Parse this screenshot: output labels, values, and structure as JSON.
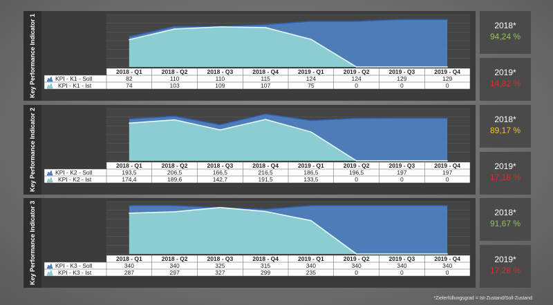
{
  "quarters": [
    "2018 - Q1",
    "2018 - Q2",
    "2018 - Q3",
    "2018 - Q4",
    "2019 - Q1",
    "2019 - Q2",
    "2019 - Q3",
    "2019 - Q4"
  ],
  "colors": {
    "soll": "#4f83c4",
    "ist": "#8fd1d4",
    "green": "#9bbf5a",
    "yellow": "#f2c231",
    "red": "#e02a2a"
  },
  "chart_data": [
    {
      "type": "area",
      "title": "Key Performance Indicator 1",
      "series": [
        {
          "name": "KPI - K1 - Soll",
          "labels": [
            "82",
            "110",
            "110",
            "115",
            "124",
            "124",
            "129",
            "129"
          ],
          "values": [
            82,
            110,
            110,
            115,
            124,
            124,
            129,
            129
          ]
        },
        {
          "name": "KPI - K1 - Ist",
          "labels": [
            "74",
            "103",
            "109",
            "107",
            "75",
            "0",
            "0",
            "0"
          ],
          "values": [
            74,
            103,
            109,
            107,
            75,
            0,
            0,
            0
          ]
        }
      ],
      "ymax": 135,
      "kpis": [
        {
          "year": "2018*",
          "value": "94,24 %",
          "status": "green"
        },
        {
          "year": "2019*",
          "value": "14,82 %",
          "status": "red"
        }
      ]
    },
    {
      "type": "area",
      "title": "Key Performance Indicator 2",
      "series": [
        {
          "name": "KPI - K2 - Soll",
          "labels": [
            "193,5",
            "206,5",
            "166,5",
            "216,5",
            "186,5",
            "196,5",
            "197",
            "197"
          ],
          "values": [
            193.5,
            206.5,
            166.5,
            216.5,
            186.5,
            196.5,
            197,
            197
          ]
        },
        {
          "name": "KPI - K2 - Ist",
          "labels": [
            "174,4",
            "189,6",
            "142,7",
            "191,5",
            "133,5",
            "0",
            "0",
            "0"
          ],
          "values": [
            174.4,
            189.6,
            142.7,
            191.5,
            133.5,
            0,
            0,
            0
          ]
        }
      ],
      "ymax": 230,
      "kpis": [
        {
          "year": "2018*",
          "value": "89,17 %",
          "status": "yellow"
        },
        {
          "year": "2019*",
          "value": "17,18 %",
          "status": "red"
        }
      ]
    },
    {
      "type": "area",
      "title": "Key Performance Indicator 3",
      "series": [
        {
          "name": "KPI - K3 - Soll",
          "labels": [
            "340",
            "340",
            "325",
            "315",
            "340",
            "340",
            "340",
            "340"
          ],
          "values": [
            340,
            340,
            325,
            315,
            340,
            340,
            340,
            340
          ]
        },
        {
          "name": "KPI - K3 - Ist",
          "labels": [
            "287",
            "297",
            "327",
            "299",
            "235",
            "0",
            "0",
            "0"
          ],
          "values": [
            287,
            297,
            327,
            299,
            235,
            0,
            0,
            0
          ]
        }
      ],
      "ymax": 350,
      "kpis": [
        {
          "year": "2018*",
          "value": "91,67 %",
          "status": "green"
        },
        {
          "year": "2019*",
          "value": "17,28 %",
          "status": "red"
        }
      ]
    }
  ],
  "footnote": "*Zielerfüllungsgrad = Ist-Zustand/Soll-Zustand"
}
